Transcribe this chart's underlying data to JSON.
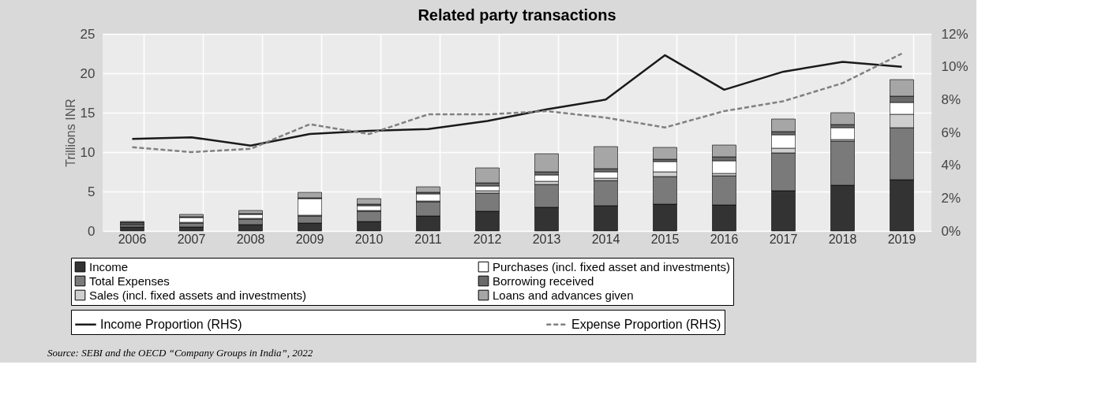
{
  "chart_data": {
    "type": "bar",
    "stacked": true,
    "title": "Related party transactions",
    "ylabel": "Trillions INR",
    "categories": [
      "2006",
      "2007",
      "2008",
      "2009",
      "2010",
      "2011",
      "2012",
      "2013",
      "2014",
      "2015",
      "2016",
      "2017",
      "2018",
      "2019"
    ],
    "ylim": [
      0,
      25
    ],
    "yticks": [
      0,
      5,
      10,
      15,
      20,
      25
    ],
    "y2lim": [
      0,
      12
    ],
    "y2ticks": [
      {
        "value": 0,
        "label": "0%"
      },
      {
        "value": 2,
        "label": "2%"
      },
      {
        "value": 4,
        "label": "4%"
      },
      {
        "value": 6,
        "label": "6%"
      },
      {
        "value": 8,
        "label": "8%"
      },
      {
        "value": 10,
        "label": "10%"
      },
      {
        "value": 12,
        "label": "12%"
      }
    ],
    "grid": true,
    "legend": "bottom",
    "series": [
      {
        "name": "Income",
        "color": "#333333",
        "values": [
          0.5,
          0.5,
          0.8,
          1.0,
          1.2,
          1.9,
          2.5,
          3.0,
          3.2,
          3.4,
          3.3,
          5.1,
          5.8,
          6.5
        ]
      },
      {
        "name": "Total Expenses",
        "color": "#7a7a7a",
        "values": [
          0.3,
          0.5,
          0.7,
          0.9,
          1.3,
          1.8,
          2.3,
          2.9,
          3.2,
          3.5,
          3.7,
          4.8,
          5.6,
          6.6
        ]
      },
      {
        "name": "Sales (incl. fixed assets and investments)",
        "color": "#cfcfcf",
        "values": [
          0.1,
          0.1,
          0.1,
          0.1,
          0.1,
          0.1,
          0.3,
          0.4,
          0.3,
          0.6,
          0.3,
          0.6,
          0.2,
          1.7
        ]
      },
      {
        "name": "Purchases (incl. fixed asset and investments)",
        "color": "#ffffff",
        "values": [
          0.1,
          0.6,
          0.5,
          2.1,
          0.6,
          0.9,
          0.6,
          0.8,
          0.8,
          1.3,
          1.6,
          1.7,
          1.5,
          1.5
        ]
      },
      {
        "name": "Borrowing  received",
        "color": "#6a6a6a",
        "values": [
          0.1,
          0.1,
          0.1,
          0.1,
          0.2,
          0.2,
          0.4,
          0.4,
          0.4,
          0.3,
          0.5,
          0.4,
          0.4,
          0.8
        ]
      },
      {
        "name": "Loans and advances given",
        "color": "#a6a6a6",
        "values": [
          0.1,
          0.3,
          0.4,
          0.7,
          0.7,
          0.7,
          1.9,
          2.3,
          2.8,
          1.5,
          1.5,
          1.6,
          1.5,
          2.1
        ]
      },
      {
        "name": "Income Proportion (RHS)",
        "type": "line",
        "axis": "y2",
        "line_style": "solid",
        "color": "#1a1a1a",
        "values": [
          5.6,
          5.7,
          5.2,
          5.9,
          6.1,
          6.2,
          6.7,
          7.4,
          8.0,
          10.7,
          8.6,
          9.7,
          10.3,
          10.0
        ]
      },
      {
        "name": "Expense Proportion (RHS)",
        "type": "line",
        "axis": "y2",
        "line_style": "dashed",
        "color": "#808080",
        "values": [
          5.1,
          4.8,
          5.0,
          6.5,
          5.9,
          7.1,
          7.1,
          7.3,
          6.9,
          6.3,
          7.3,
          7.9,
          9.0,
          10.8
        ]
      }
    ],
    "annotations": [
      "Source: SEBI and the OECD “Company Groups in India”, 2022"
    ]
  }
}
